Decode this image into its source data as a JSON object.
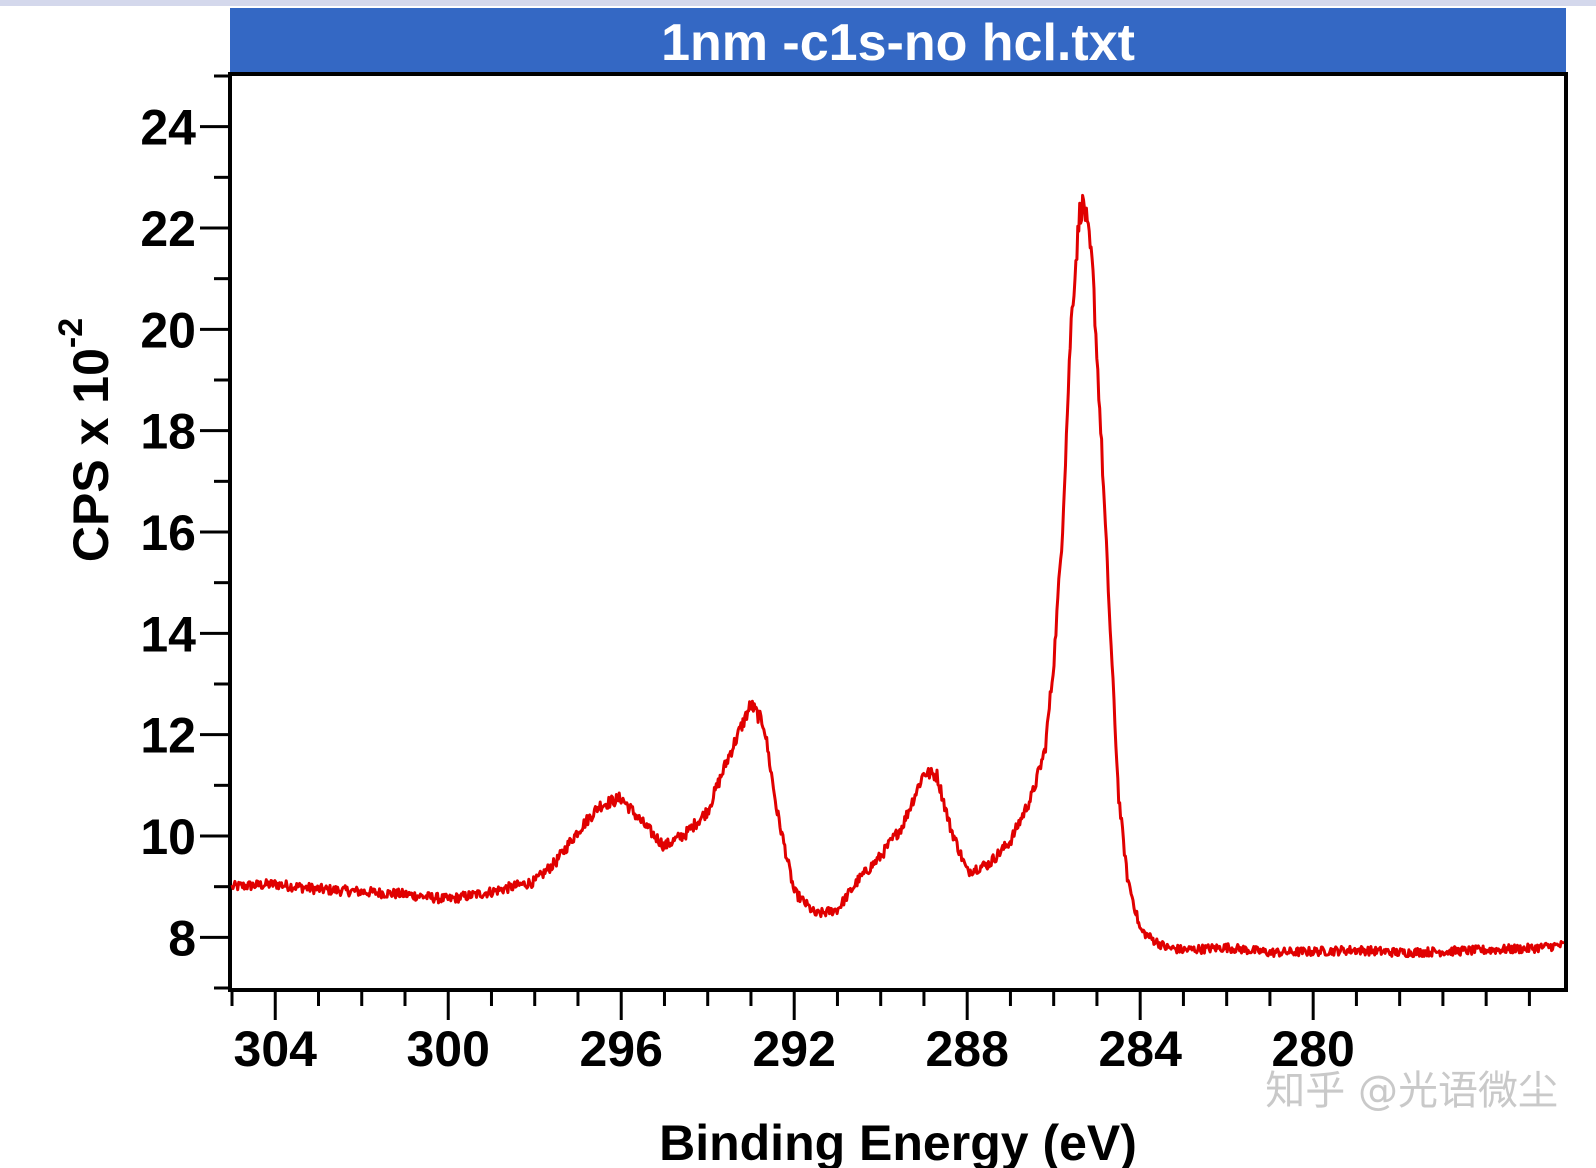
{
  "chart_data": {
    "type": "line",
    "title": "1nm -c1s-no hcl.txt",
    "xlabel": "Binding Energy (eV)",
    "ylabel": "CPS x 10",
    "ylabel_exponent": "-2",
    "xlim": [
      305.0,
      274.2
    ],
    "ylim": [
      7.0,
      25.0
    ],
    "x_ticks": [
      "304",
      "300",
      "296",
      "292",
      "288",
      "284",
      "280"
    ],
    "x_tick_values": [
      304,
      300,
      296,
      292,
      288,
      284,
      280
    ],
    "y_ticks": [
      "8",
      "10",
      "12",
      "14",
      "16",
      "18",
      "20",
      "22",
      "24"
    ],
    "y_tick_values": [
      8,
      10,
      12,
      14,
      16,
      18,
      20,
      22,
      24
    ],
    "series": [
      {
        "name": "1nm -c1s-no hcl",
        "color": "#e00000",
        "x": [
          305.0,
          304.0,
          303.0,
          302.0,
          301.0,
          300.0,
          299.0,
          298.0,
          297.5,
          297.0,
          296.5,
          296.0,
          295.5,
          295.0,
          294.5,
          294.0,
          293.5,
          293.0,
          292.7,
          292.4,
          292.0,
          291.5,
          291.0,
          290.5,
          290.0,
          289.5,
          289.0,
          288.7,
          288.4,
          288.0,
          287.5,
          287.0,
          286.5,
          286.2,
          286.0,
          285.8,
          285.6,
          285.4,
          285.3,
          285.1,
          284.9,
          284.7,
          284.5,
          284.3,
          284.0,
          283.7,
          283.4,
          283.0,
          282.0,
          281.0,
          280.0,
          279.0,
          278.0,
          277.0,
          276.0,
          275.0,
          274.2
        ],
        "y": [
          9.0,
          9.05,
          8.95,
          8.9,
          8.85,
          8.75,
          8.9,
          9.1,
          9.5,
          10.1,
          10.6,
          10.75,
          10.25,
          9.8,
          10.05,
          10.5,
          11.6,
          12.6,
          12.2,
          10.5,
          8.9,
          8.45,
          8.55,
          9.15,
          9.6,
          10.2,
          11.25,
          11.2,
          10.2,
          9.3,
          9.45,
          9.9,
          10.8,
          11.7,
          13.4,
          16.0,
          20.1,
          22.3,
          22.5,
          21.2,
          17.8,
          14.2,
          10.8,
          9.2,
          8.15,
          7.95,
          7.8,
          7.75,
          7.8,
          7.7,
          7.72,
          7.75,
          7.7,
          7.72,
          7.75,
          7.78,
          7.85
        ]
      }
    ],
    "grid": false
  },
  "watermark": "知乎 @光语微尘"
}
